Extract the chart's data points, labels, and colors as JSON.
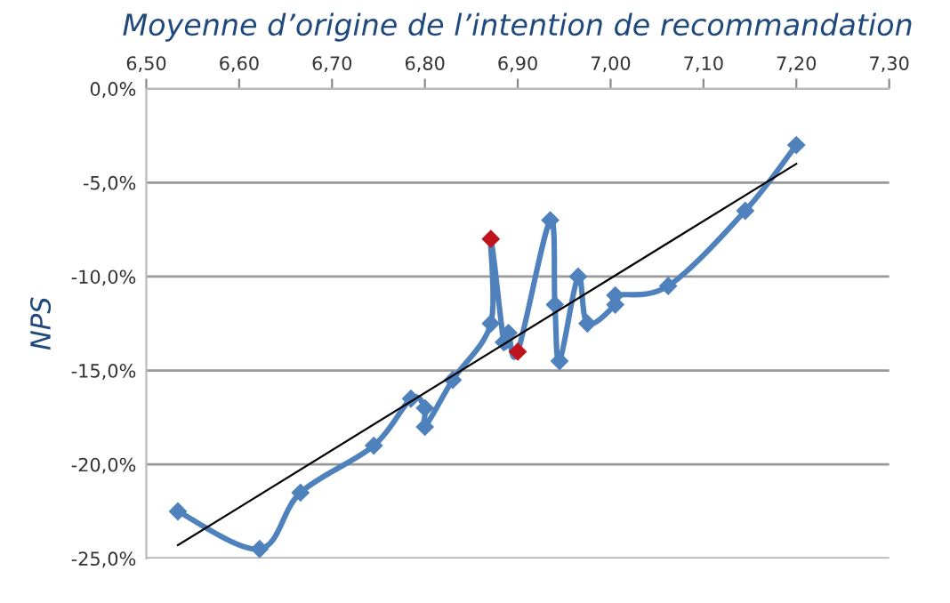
{
  "chart_data": {
    "type": "line",
    "title": "Moyenne d’origine de l’intention de recommandation",
    "ylabel": "NPS",
    "xlim": [
      6.5,
      7.3
    ],
    "ylim": [
      -25,
      0
    ],
    "xticks": [
      {
        "value": 6.5,
        "label": "6,50"
      },
      {
        "value": 6.6,
        "label": "6,60"
      },
      {
        "value": 6.7,
        "label": "6,70"
      },
      {
        "value": 6.8,
        "label": "6,80"
      },
      {
        "value": 6.9,
        "label": "6,90"
      },
      {
        "value": 7.0,
        "label": "7,00"
      },
      {
        "value": 7.1,
        "label": "7,10"
      },
      {
        "value": 7.2,
        "label": "7,20"
      },
      {
        "value": 7.3,
        "label": "7,30"
      }
    ],
    "yticks": [
      {
        "value": 0,
        "label": "0,0%"
      },
      {
        "value": -5,
        "label": "-5,0%"
      },
      {
        "value": -10,
        "label": "-10,0%"
      },
      {
        "value": -15,
        "label": "-15,0%"
      },
      {
        "value": -20,
        "label": "-20,0%"
      },
      {
        "value": -25,
        "label": "-25,0%"
      }
    ],
    "grid": "y",
    "marker": "diamond",
    "series": [
      {
        "color": "#4f81bd",
        "x": [
          6.534,
          6.622,
          6.666,
          6.745,
          6.785,
          6.8,
          6.8,
          6.83,
          6.871,
          6.871,
          6.885,
          6.89,
          6.9,
          6.935,
          6.94,
          6.945,
          6.965,
          6.975,
          7.005,
          7.005,
          7.062,
          7.145,
          7.2
        ],
        "values": [
          -22.5,
          -24.5,
          -21.5,
          -19.0,
          -16.5,
          -17.0,
          -18.0,
          -15.5,
          -12.5,
          -8.0,
          -13.5,
          -13.0,
          -14.0,
          -7.0,
          -11.5,
          -14.5,
          -10.0,
          -12.5,
          -11.5,
          -11.0,
          -10.5,
          -6.5,
          -3.0
        ],
        "colors": [
          "#4f81bd",
          "#4f81bd",
          "#4f81bd",
          "#4f81bd",
          "#4f81bd",
          "#4f81bd",
          "#4f81bd",
          "#4f81bd",
          "#4f81bd",
          "#c0141c",
          "#4f81bd",
          "#4f81bd",
          "#c0141c",
          "#4f81bd",
          "#4f81bd",
          "#4f81bd",
          "#4f81bd",
          "#4f81bd",
          "#4f81bd",
          "#4f81bd",
          "#4f81bd",
          "#4f81bd",
          "#4f81bd"
        ]
      },
      {
        "type": "line",
        "color": "#000000",
        "marker": "none",
        "x": [
          6.534,
          7.2
        ],
        "values": [
          -24.3,
          -4.0
        ]
      }
    ]
  }
}
